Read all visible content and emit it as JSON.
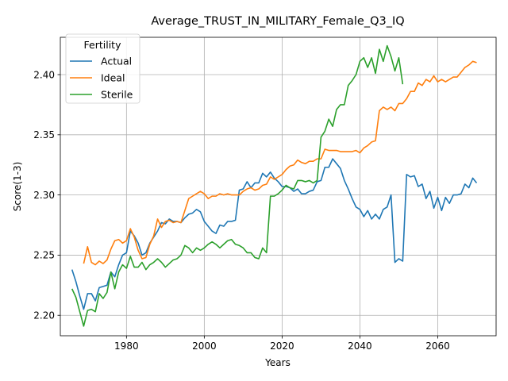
{
  "chart_data": {
    "type": "line",
    "title": "Average_TRUST_IN_MILITARY_Female_Q3_IQ",
    "xlabel": "Years",
    "ylabel": "Score(1-3)",
    "xlim": [
      1963,
      2075
    ],
    "ylim": [
      2.183,
      2.431
    ],
    "x_ticks": [
      1980,
      2000,
      2020,
      2040,
      2060
    ],
    "y_ticks": [
      2.2,
      2.25,
      2.3,
      2.35,
      2.4
    ],
    "grid": true,
    "legend": {
      "title": "Fertility",
      "placement": "top-left"
    },
    "series": [
      {
        "name": "Actual",
        "color": "#1f77b4",
        "points": [
          [
            1966,
            2.238
          ],
          [
            1967,
            2.228
          ],
          [
            1968,
            2.216
          ],
          [
            1969,
            2.205
          ],
          [
            1970,
            2.218
          ],
          [
            1971,
            2.218
          ],
          [
            1972,
            2.212
          ],
          [
            1973,
            2.223
          ],
          [
            1974,
            2.224
          ],
          [
            1975,
            2.225
          ],
          [
            1976,
            2.236
          ],
          [
            1977,
            2.232
          ],
          [
            1978,
            2.242
          ],
          [
            1979,
            2.25
          ],
          [
            1980,
            2.252
          ],
          [
            1981,
            2.27
          ],
          [
            1982,
            2.266
          ],
          [
            1983,
            2.26
          ],
          [
            1984,
            2.25
          ],
          [
            1985,
            2.252
          ],
          [
            1986,
            2.26
          ],
          [
            1987,
            2.265
          ],
          [
            1988,
            2.27
          ],
          [
            1989,
            2.277
          ],
          [
            1990,
            2.276
          ],
          [
            1991,
            2.28
          ],
          [
            1992,
            2.278
          ],
          [
            1993,
            2.278
          ],
          [
            1994,
            2.277
          ],
          [
            1995,
            2.281
          ],
          [
            1996,
            2.284
          ],
          [
            1997,
            2.285
          ],
          [
            1998,
            2.288
          ],
          [
            1999,
            2.286
          ],
          [
            2000,
            2.278
          ],
          [
            2001,
            2.274
          ],
          [
            2002,
            2.27
          ],
          [
            2003,
            2.268
          ],
          [
            2004,
            2.275
          ],
          [
            2005,
            2.274
          ],
          [
            2006,
            2.278
          ],
          [
            2007,
            2.278
          ],
          [
            2008,
            2.279
          ],
          [
            2009,
            2.304
          ],
          [
            2010,
            2.305
          ],
          [
            2011,
            2.311
          ],
          [
            2012,
            2.306
          ],
          [
            2013,
            2.31
          ],
          [
            2014,
            2.31
          ],
          [
            2015,
            2.318
          ],
          [
            2016,
            2.315
          ],
          [
            2017,
            2.319
          ],
          [
            2018,
            2.314
          ],
          [
            2019,
            2.311
          ],
          [
            2020,
            2.307
          ],
          [
            2021,
            2.307
          ],
          [
            2022,
            2.306
          ],
          [
            2023,
            2.303
          ],
          [
            2024,
            2.305
          ],
          [
            2025,
            2.301
          ],
          [
            2026,
            2.301
          ],
          [
            2027,
            2.303
          ],
          [
            2028,
            2.304
          ],
          [
            2029,
            2.311
          ],
          [
            2030,
            2.312
          ],
          [
            2031,
            2.323
          ],
          [
            2032,
            2.323
          ],
          [
            2033,
            2.33
          ],
          [
            2034,
            2.326
          ],
          [
            2035,
            2.322
          ],
          [
            2036,
            2.312
          ],
          [
            2037,
            2.305
          ],
          [
            2038,
            2.297
          ],
          [
            2039,
            2.29
          ],
          [
            2040,
            2.288
          ],
          [
            2041,
            2.282
          ],
          [
            2042,
            2.287
          ],
          [
            2043,
            2.28
          ],
          [
            2044,
            2.284
          ],
          [
            2045,
            2.28
          ],
          [
            2046,
            2.288
          ],
          [
            2047,
            2.29
          ],
          [
            2048,
            2.3
          ],
          [
            2049,
            2.244
          ],
          [
            2050,
            2.247
          ],
          [
            2051,
            2.245
          ],
          [
            2052,
            2.317
          ],
          [
            2053,
            2.315
          ],
          [
            2054,
            2.316
          ],
          [
            2055,
            2.307
          ],
          [
            2056,
            2.309
          ],
          [
            2057,
            2.297
          ],
          [
            2058,
            2.303
          ],
          [
            2059,
            2.289
          ],
          [
            2060,
            2.298
          ],
          [
            2061,
            2.287
          ],
          [
            2062,
            2.298
          ],
          [
            2063,
            2.293
          ],
          [
            2064,
            2.3
          ],
          [
            2065,
            2.3
          ],
          [
            2066,
            2.301
          ],
          [
            2067,
            2.309
          ],
          [
            2068,
            2.306
          ],
          [
            2069,
            2.314
          ],
          [
            2070,
            2.31
          ]
        ]
      },
      {
        "name": "Ideal",
        "color": "#ff7f0e",
        "points": [
          [
            1969,
            2.243
          ],
          [
            1970,
            2.257
          ],
          [
            1971,
            2.244
          ],
          [
            1972,
            2.242
          ],
          [
            1973,
            2.245
          ],
          [
            1974,
            2.243
          ],
          [
            1975,
            2.246
          ],
          [
            1976,
            2.255
          ],
          [
            1977,
            2.262
          ],
          [
            1978,
            2.263
          ],
          [
            1979,
            2.26
          ],
          [
            1980,
            2.262
          ],
          [
            1981,
            2.272
          ],
          [
            1982,
            2.265
          ],
          [
            1983,
            2.254
          ],
          [
            1984,
            2.247
          ],
          [
            1985,
            2.248
          ],
          [
            1986,
            2.259
          ],
          [
            1987,
            2.266
          ],
          [
            1988,
            2.28
          ],
          [
            1989,
            2.273
          ],
          [
            1990,
            2.278
          ],
          [
            1991,
            2.279
          ],
          [
            1992,
            2.277
          ],
          [
            1993,
            2.278
          ],
          [
            1994,
            2.277
          ],
          [
            1995,
            2.287
          ],
          [
            1996,
            2.297
          ],
          [
            1997,
            2.299
          ],
          [
            1998,
            2.301
          ],
          [
            1999,
            2.303
          ],
          [
            2000,
            2.301
          ],
          [
            2001,
            2.297
          ],
          [
            2002,
            2.299
          ],
          [
            2003,
            2.299
          ],
          [
            2004,
            2.301
          ],
          [
            2005,
            2.3
          ],
          [
            2006,
            2.301
          ],
          [
            2007,
            2.3
          ],
          [
            2008,
            2.3
          ],
          [
            2009,
            2.3
          ],
          [
            2010,
            2.303
          ],
          [
            2011,
            2.305
          ],
          [
            2012,
            2.306
          ],
          [
            2013,
            2.304
          ],
          [
            2014,
            2.305
          ],
          [
            2015,
            2.308
          ],
          [
            2016,
            2.309
          ],
          [
            2017,
            2.315
          ],
          [
            2018,
            2.313
          ],
          [
            2019,
            2.315
          ],
          [
            2020,
            2.317
          ],
          [
            2021,
            2.321
          ],
          [
            2022,
            2.324
          ],
          [
            2023,
            2.325
          ],
          [
            2024,
            2.329
          ],
          [
            2025,
            2.327
          ],
          [
            2026,
            2.326
          ],
          [
            2027,
            2.328
          ],
          [
            2028,
            2.328
          ],
          [
            2029,
            2.33
          ],
          [
            2030,
            2.33
          ],
          [
            2031,
            2.338
          ],
          [
            2032,
            2.337
          ],
          [
            2033,
            2.337
          ],
          [
            2034,
            2.337
          ],
          [
            2035,
            2.336
          ],
          [
            2036,
            2.336
          ],
          [
            2037,
            2.336
          ],
          [
            2038,
            2.336
          ],
          [
            2039,
            2.337
          ],
          [
            2040,
            2.335
          ],
          [
            2041,
            2.339
          ],
          [
            2042,
            2.341
          ],
          [
            2043,
            2.344
          ],
          [
            2044,
            2.345
          ],
          [
            2045,
            2.37
          ],
          [
            2046,
            2.373
          ],
          [
            2047,
            2.371
          ],
          [
            2048,
            2.373
          ],
          [
            2049,
            2.37
          ],
          [
            2050,
            2.376
          ],
          [
            2051,
            2.376
          ],
          [
            2052,
            2.38
          ],
          [
            2053,
            2.386
          ],
          [
            2054,
            2.386
          ],
          [
            2055,
            2.393
          ],
          [
            2056,
            2.391
          ],
          [
            2057,
            2.396
          ],
          [
            2058,
            2.394
          ],
          [
            2059,
            2.399
          ],
          [
            2060,
            2.394
          ],
          [
            2061,
            2.396
          ],
          [
            2062,
            2.394
          ],
          [
            2063,
            2.396
          ],
          [
            2064,
            2.398
          ],
          [
            2065,
            2.398
          ],
          [
            2066,
            2.402
          ],
          [
            2067,
            2.406
          ],
          [
            2068,
            2.408
          ],
          [
            2069,
            2.411
          ],
          [
            2070,
            2.41
          ]
        ]
      },
      {
        "name": "Sterile",
        "color": "#2ca02c",
        "points": [
          [
            1966,
            2.222
          ],
          [
            1967,
            2.215
          ],
          [
            1968,
            2.203
          ],
          [
            1969,
            2.191
          ],
          [
            1970,
            2.204
          ],
          [
            1971,
            2.205
          ],
          [
            1972,
            2.203
          ],
          [
            1973,
            2.218
          ],
          [
            1974,
            2.214
          ],
          [
            1975,
            2.219
          ],
          [
            1976,
            2.236
          ],
          [
            1977,
            2.222
          ],
          [
            1978,
            2.236
          ],
          [
            1979,
            2.242
          ],
          [
            1980,
            2.239
          ],
          [
            1981,
            2.249
          ],
          [
            1982,
            2.24
          ],
          [
            1983,
            2.24
          ],
          [
            1984,
            2.244
          ],
          [
            1985,
            2.238
          ],
          [
            1986,
            2.242
          ],
          [
            1987,
            2.244
          ],
          [
            1988,
            2.247
          ],
          [
            1989,
            2.244
          ],
          [
            1990,
            2.24
          ],
          [
            1991,
            2.243
          ],
          [
            1992,
            2.246
          ],
          [
            1993,
            2.247
          ],
          [
            1994,
            2.25
          ],
          [
            1995,
            2.258
          ],
          [
            1996,
            2.256
          ],
          [
            1997,
            2.252
          ],
          [
            1998,
            2.256
          ],
          [
            1999,
            2.254
          ],
          [
            2000,
            2.256
          ],
          [
            2001,
            2.259
          ],
          [
            2002,
            2.261
          ],
          [
            2003,
            2.259
          ],
          [
            2004,
            2.256
          ],
          [
            2005,
            2.259
          ],
          [
            2006,
            2.262
          ],
          [
            2007,
            2.263
          ],
          [
            2008,
            2.259
          ],
          [
            2009,
            2.258
          ],
          [
            2010,
            2.256
          ],
          [
            2011,
            2.252
          ],
          [
            2012,
            2.252
          ],
          [
            2013,
            2.248
          ],
          [
            2014,
            2.247
          ],
          [
            2015,
            2.256
          ],
          [
            2016,
            2.252
          ],
          [
            2017,
            2.299
          ],
          [
            2018,
            2.299
          ],
          [
            2019,
            2.301
          ],
          [
            2020,
            2.304
          ],
          [
            2021,
            2.308
          ],
          [
            2022,
            2.306
          ],
          [
            2023,
            2.305
          ],
          [
            2024,
            2.312
          ],
          [
            2025,
            2.312
          ],
          [
            2026,
            2.311
          ],
          [
            2027,
            2.312
          ],
          [
            2028,
            2.31
          ],
          [
            2029,
            2.312
          ],
          [
            2030,
            2.348
          ],
          [
            2031,
            2.353
          ],
          [
            2032,
            2.363
          ],
          [
            2033,
            2.357
          ],
          [
            2034,
            2.371
          ],
          [
            2035,
            2.375
          ],
          [
            2036,
            2.375
          ],
          [
            2037,
            2.391
          ],
          [
            2038,
            2.395
          ],
          [
            2039,
            2.4
          ],
          [
            2040,
            2.411
          ],
          [
            2041,
            2.414
          ],
          [
            2042,
            2.406
          ],
          [
            2043,
            2.414
          ],
          [
            2044,
            2.401
          ],
          [
            2045,
            2.421
          ],
          [
            2046,
            2.411
          ],
          [
            2047,
            2.424
          ],
          [
            2048,
            2.415
          ],
          [
            2049,
            2.403
          ],
          [
            2050,
            2.414
          ],
          [
            2051,
            2.392
          ]
        ]
      }
    ]
  }
}
